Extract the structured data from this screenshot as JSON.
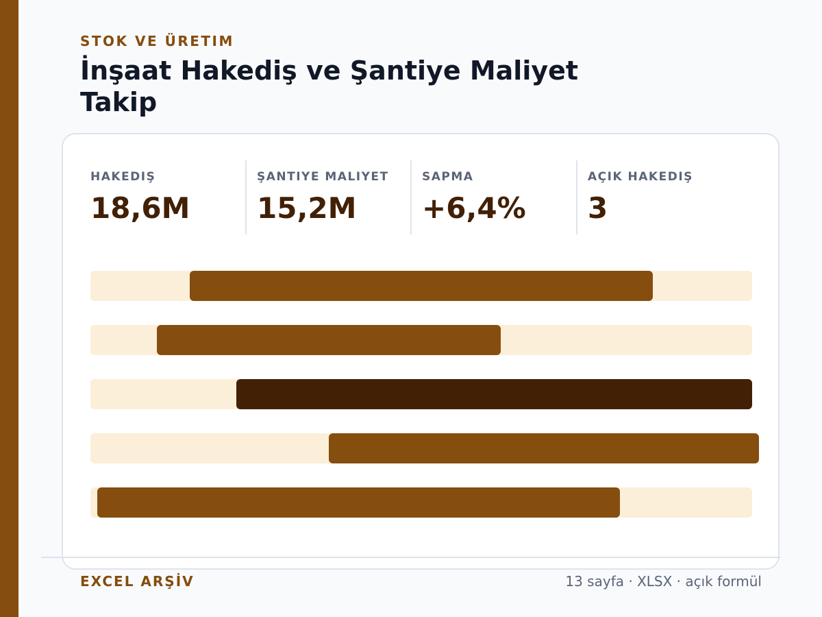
{
  "header": {
    "eyebrow": "STOK VE ÜRETIM",
    "title": "İnşaat Hakediş ve Şantiye Maliyet Takip"
  },
  "kpis": [
    {
      "label": "HAKEDIŞ",
      "value": "18,6M"
    },
    {
      "label": "ŞANTIYE MALIYET",
      "value": "15,2M"
    },
    {
      "label": "SAPMA",
      "value": "+6,4%"
    },
    {
      "label": "AÇIK HAKEDIŞ",
      "value": "3"
    }
  ],
  "chart_data": {
    "type": "bar",
    "orientation": "horizontal-range",
    "title": "",
    "xlabel": "",
    "ylabel": "",
    "xlim": [
      0,
      100
    ],
    "grid": false,
    "series": [
      {
        "start": 15,
        "end": 85,
        "highlight": false
      },
      {
        "start": 10,
        "end": 62,
        "highlight": false
      },
      {
        "start": 22,
        "end": 100,
        "highlight": true
      },
      {
        "start": 36,
        "end": 101,
        "highlight": false
      },
      {
        "start": 1,
        "end": 80,
        "highlight": false
      }
    ]
  },
  "footer": {
    "left": "EXCEL ARŞİV",
    "right": "13 sayfa · XLSX · açık formül"
  },
  "colors": {
    "accent": "#854d0e",
    "accent_dark": "#422006",
    "track": "#fbefd9"
  }
}
